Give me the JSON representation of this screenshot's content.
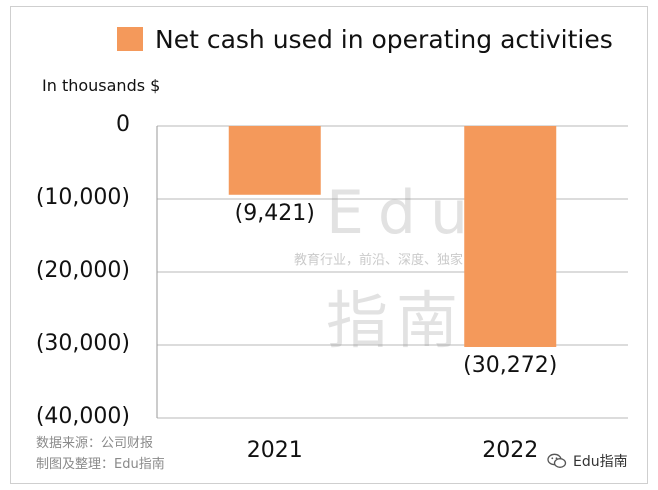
{
  "chart_data": {
    "type": "bar",
    "categories": [
      "2021",
      "2022"
    ],
    "series": [
      {
        "name": "Net cash used in operating activities",
        "values": [
          -9421,
          -30272
        ]
      }
    ],
    "data_labels": [
      "(9,421)",
      "(30,272)"
    ],
    "unit_label": "In thousands $",
    "yticks": [
      {
        "value": 0,
        "label": "0"
      },
      {
        "value": -10000,
        "label": "(10,000)"
      },
      {
        "value": -20000,
        "label": "(20,000)"
      },
      {
        "value": -30000,
        "label": "(30,000)"
      },
      {
        "value": -40000,
        "label": "(40,000)"
      }
    ],
    "ylim": [
      -40000,
      0
    ],
    "grid": true,
    "legend_position": "top",
    "bar_color": "#F4995B"
  },
  "watermark": {
    "latin": "Edu",
    "sub": "教育行业，前沿、深度、独家",
    "cn": "指南"
  },
  "source": {
    "line1": "数据来源：公司财报",
    "line2": "制图及整理：Edu指南"
  },
  "brand": {
    "label": "Edu指南",
    "icon": "wechat-icon"
  }
}
